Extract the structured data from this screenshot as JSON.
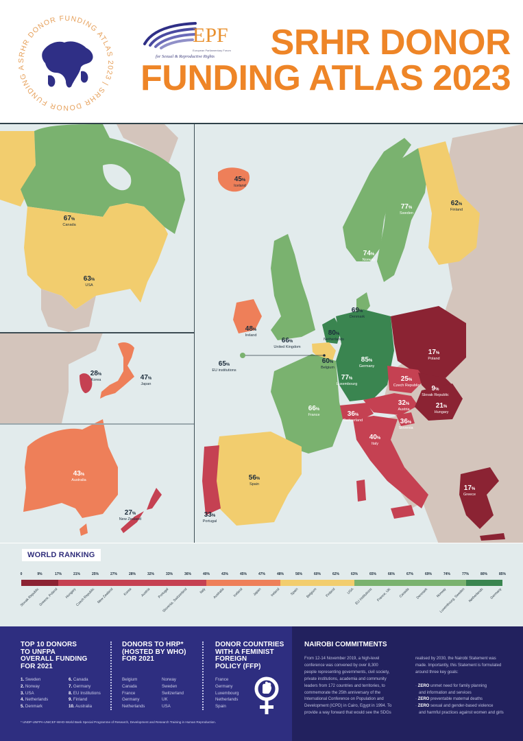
{
  "header": {
    "seal_text": "SRHR DONOR FUNDING ATLAS 2023",
    "seal_year": "2023",
    "logo_abbr": "EPF",
    "logo_fullname": "European Parliamentary Forum",
    "logo_tagline": "for Sexual & Reproductive Rights",
    "title_line1": "SRHR DONOR",
    "title_line2": "FUNDING ATLAS 2023"
  },
  "colors": {
    "title_orange": "#ee8527",
    "navy": "#2e2e80",
    "navy_dark": "#22215e",
    "band_0_17": "#8b2333",
    "band_17_40": "#c54152",
    "band_40_48": "#ee7f59",
    "band_48_63": "#f2cd6e",
    "band_63_77": "#7ab26f",
    "band_77_85": "#3a8550",
    "non_donor_land": "#d4c5bc",
    "sea": "#e2ebec"
  },
  "map": {
    "labels": [
      {
        "pct": "67",
        "name": "Canada"
      },
      {
        "pct": "63",
        "name": "USA"
      },
      {
        "pct": "28",
        "name": "Korea"
      },
      {
        "pct": "47",
        "name": "Japan"
      },
      {
        "pct": "43",
        "name": "Australia"
      },
      {
        "pct": "27",
        "name": "New Zealand"
      },
      {
        "pct": "45",
        "name": "Iceland"
      },
      {
        "pct": "77",
        "name": "Sweden"
      },
      {
        "pct": "62",
        "name": "Finland"
      },
      {
        "pct": "74",
        "name": "Norway"
      },
      {
        "pct": "69",
        "name": "Denmark"
      },
      {
        "pct": "48",
        "name": "Ireland"
      },
      {
        "pct": "66",
        "name": "United Kingdom"
      },
      {
        "pct": "80",
        "name": "Netherlands"
      },
      {
        "pct": "65",
        "name": "EU institutions"
      },
      {
        "pct": "60",
        "name": "Belgium"
      },
      {
        "pct": "85",
        "name": "Germany"
      },
      {
        "pct": "77",
        "name": "Luxembourg"
      },
      {
        "pct": "17",
        "name": "Poland"
      },
      {
        "pct": "25",
        "name": "Czech Republic"
      },
      {
        "pct": "9",
        "name": "Slovak Republic"
      },
      {
        "pct": "32",
        "name": "Austria"
      },
      {
        "pct": "21",
        "name": "Hungary"
      },
      {
        "pct": "66",
        "name": "France"
      },
      {
        "pct": "36",
        "name": "Switzerland"
      },
      {
        "pct": "36",
        "name": "Slovenia"
      },
      {
        "pct": "40",
        "name": "Italy"
      },
      {
        "pct": "56",
        "name": "Spain"
      },
      {
        "pct": "33",
        "name": "Portugal"
      },
      {
        "pct": "17",
        "name": "Greece"
      }
    ],
    "pct_sign": "%"
  },
  "ranking": {
    "title": "WORLD RANKING",
    "ticks": [
      "0",
      "9%",
      "17%",
      "21%",
      "25%",
      "27%",
      "28%",
      "32%",
      "33%",
      "36%",
      "40%",
      "43%",
      "45%",
      "47%",
      "48%",
      "56%",
      "60%",
      "62%",
      "63%",
      "65%",
      "66%",
      "67%",
      "69%",
      "74%",
      "77%",
      "80%",
      "85%"
    ],
    "names": [
      "Slovak Republic",
      "Greece, Poland",
      "Hungary",
      "Czech Republic",
      "New Zealand",
      "Korea",
      "Austria",
      "Portugal",
      "Slovenia, Switzerland",
      "Italy",
      "Australia",
      "Iceland",
      "Japan",
      "Ireland",
      "Spain",
      "Belgium",
      "Finland",
      "USA",
      "EU institutions",
      "France, UK",
      "Canada",
      "Denmark",
      "Norway",
      "Luxembourg, Sweden",
      "Netherlands",
      "Germany"
    ]
  },
  "chart_data": {
    "type": "map",
    "title": "SRHR Donor Funding Atlas 2023",
    "legend": "World ranking (%)",
    "series": [
      {
        "country": "Germany",
        "value": 85
      },
      {
        "country": "Netherlands",
        "value": 80
      },
      {
        "country": "Sweden",
        "value": 77
      },
      {
        "country": "Luxembourg",
        "value": 77
      },
      {
        "country": "Norway",
        "value": 74
      },
      {
        "country": "Denmark",
        "value": 69
      },
      {
        "country": "Canada",
        "value": 67
      },
      {
        "country": "France",
        "value": 66
      },
      {
        "country": "United Kingdom",
        "value": 66
      },
      {
        "country": "EU institutions",
        "value": 65
      },
      {
        "country": "USA",
        "value": 63
      },
      {
        "country": "Finland",
        "value": 62
      },
      {
        "country": "Belgium",
        "value": 60
      },
      {
        "country": "Spain",
        "value": 56
      },
      {
        "country": "Ireland",
        "value": 48
      },
      {
        "country": "Japan",
        "value": 47
      },
      {
        "country": "Iceland",
        "value": 45
      },
      {
        "country": "Australia",
        "value": 43
      },
      {
        "country": "Italy",
        "value": 40
      },
      {
        "country": "Slovenia",
        "value": 36
      },
      {
        "country": "Switzerland",
        "value": 36
      },
      {
        "country": "Portugal",
        "value": 33
      },
      {
        "country": "Austria",
        "value": 32
      },
      {
        "country": "Korea",
        "value": 28
      },
      {
        "country": "New Zealand",
        "value": 27
      },
      {
        "country": "Czech Republic",
        "value": 25
      },
      {
        "country": "Hungary",
        "value": 21
      },
      {
        "country": "Poland",
        "value": 17
      },
      {
        "country": "Greece",
        "value": 17
      },
      {
        "country": "Slovak Republic",
        "value": 9
      }
    ],
    "bands": [
      {
        "range": [
          0,
          17
        ],
        "color": "#8b2333"
      },
      {
        "range": [
          17,
          40
        ],
        "color": "#c54152"
      },
      {
        "range": [
          40,
          48
        ],
        "color": "#ee7f59"
      },
      {
        "range": [
          48,
          63
        ],
        "color": "#f2cd6e"
      },
      {
        "range": [
          63,
          77
        ],
        "color": "#7ab26f"
      },
      {
        "range": [
          77,
          85
        ],
        "color": "#3a8550"
      }
    ]
  },
  "bottom": {
    "unfpa": {
      "heading": [
        "TOP 10 DONORS",
        "TO UNFPA",
        "OVERALL FUNDING",
        "FOR 2021"
      ],
      "items": [
        {
          "n": "1.",
          "name": "Sweden"
        },
        {
          "n": "2.",
          "name": "Norway"
        },
        {
          "n": "3.",
          "name": "USA"
        },
        {
          "n": "4.",
          "name": "Netherlands"
        },
        {
          "n": "5.",
          "name": "Denmark"
        },
        {
          "n": "6.",
          "name": "Canada"
        },
        {
          "n": "7.",
          "name": "Germany"
        },
        {
          "n": "8.",
          "name": "EU Institutions"
        },
        {
          "n": "9.",
          "name": "Finland"
        },
        {
          "n": "10.",
          "name": "Australia"
        }
      ]
    },
    "hrp": {
      "heading": [
        "DONORS TO HRP*",
        "(HOSTED BY WHO)",
        "FOR 2021"
      ],
      "col1": [
        "Belgium",
        "Canada",
        "France",
        "Germany",
        "Netherlands"
      ],
      "col2": [
        "Norway",
        "Sweden",
        "Switzerland",
        "UK",
        "USA"
      ]
    },
    "ffp": {
      "heading": [
        "DONOR COUNTRIES",
        "WITH A FEMINIST",
        "FOREIGN",
        "POLICY (FFP)"
      ],
      "items": [
        "France",
        "Germany",
        "Luxembourg",
        "Netherlands",
        "Spain"
      ]
    },
    "footnote": "* UNDP-UNFPA-UNICEF-WHO-World Bank Special Programme of Research, Development and Research Training in Human Reproduction.",
    "nairobi": {
      "heading": "NAIROBI COMMITMENTS",
      "col1": [
        "From 12-14 November 2019, a high-level",
        "conference was convened by over 8,300",
        "people representing governments, civil society,",
        "private institutions, academia and community",
        "leaders from 172 countries and territories, to",
        "commemorate the 25th anniversary of the",
        "International Conference on Population and",
        "Development (ICPD) in Cairo, Egypt in 1994. To",
        "provide a way forward that would see the SDGs"
      ],
      "col2": [
        "realised by 2030, the Nairobi Statement was",
        "made. Importantly, this Statement is formulated",
        "around three key goals:"
      ],
      "goals": [
        {
          "bold": "ZERO",
          "l1": " unmet need for family planning",
          "l2": "and information and services"
        },
        {
          "bold": "ZERO",
          "l1": " preventable maternal deaths",
          "l2": ""
        },
        {
          "bold": "ZERO",
          "l1": " sexual and gender-based violence",
          "l2": "and harmful practices against women and girls"
        }
      ]
    }
  }
}
